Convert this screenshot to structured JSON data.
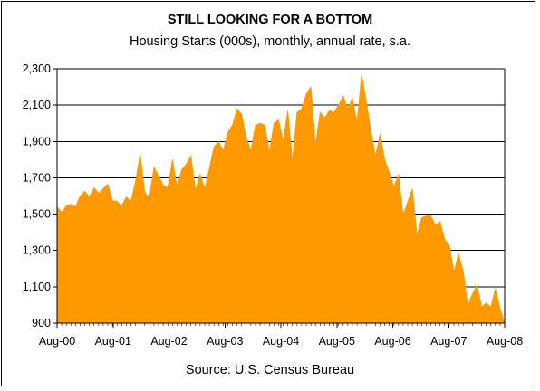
{
  "chart_data": {
    "type": "area",
    "title": "STILL LOOKING FOR A BOTTOM",
    "subtitle": "Housing Starts (000s), monthly, annual rate, s.a.",
    "source": "Source: U.S. Census Bureau",
    "xlabel": "",
    "ylabel": "",
    "ylim": [
      900,
      2300
    ],
    "yticks": [
      "900",
      "1,100",
      "1,300",
      "1,500",
      "1,700",
      "1,900",
      "2,100",
      "2,300"
    ],
    "ytick_values": [
      900,
      1100,
      1300,
      1500,
      1700,
      1900,
      2100,
      2300
    ],
    "xticks": [
      "Aug-00",
      "Aug-01",
      "Aug-02",
      "Aug-03",
      "Aug-04",
      "Aug-05",
      "Aug-06",
      "Aug-07",
      "Aug-08"
    ],
    "grid": "horizontal",
    "colors": {
      "fill": "#ff9900",
      "stroke": "#000000",
      "plot_bg": "#ffffff",
      "grid": "#000000"
    },
    "x_start": "Aug-00",
    "frequency": "monthly",
    "values": [
      1540,
      1510,
      1545,
      1555,
      1540,
      1600,
      1625,
      1595,
      1645,
      1615,
      1640,
      1665,
      1575,
      1570,
      1545,
      1595,
      1570,
      1680,
      1830,
      1620,
      1590,
      1760,
      1710,
      1660,
      1645,
      1800,
      1650,
      1745,
      1775,
      1820,
      1630,
      1720,
      1640,
      1750,
      1870,
      1900,
      1850,
      1950,
      1990,
      2080,
      2050,
      1920,
      1850,
      1990,
      2000,
      1990,
      1840,
      2000,
      2020,
      1900,
      2070,
      1790,
      2060,
      2080,
      2160,
      2200,
      1880,
      2060,
      2030,
      2070,
      2060,
      2100,
      2150,
      2080,
      2140,
      2000,
      2270,
      2120,
      1960,
      1820,
      1940,
      1800,
      1730,
      1650,
      1720,
      1490,
      1570,
      1640,
      1380,
      1480,
      1490,
      1490,
      1440,
      1460,
      1360,
      1330,
      1180,
      1280,
      1190,
      1000,
      1060,
      1110,
      990,
      1010,
      990,
      1090,
      980,
      900
    ]
  }
}
